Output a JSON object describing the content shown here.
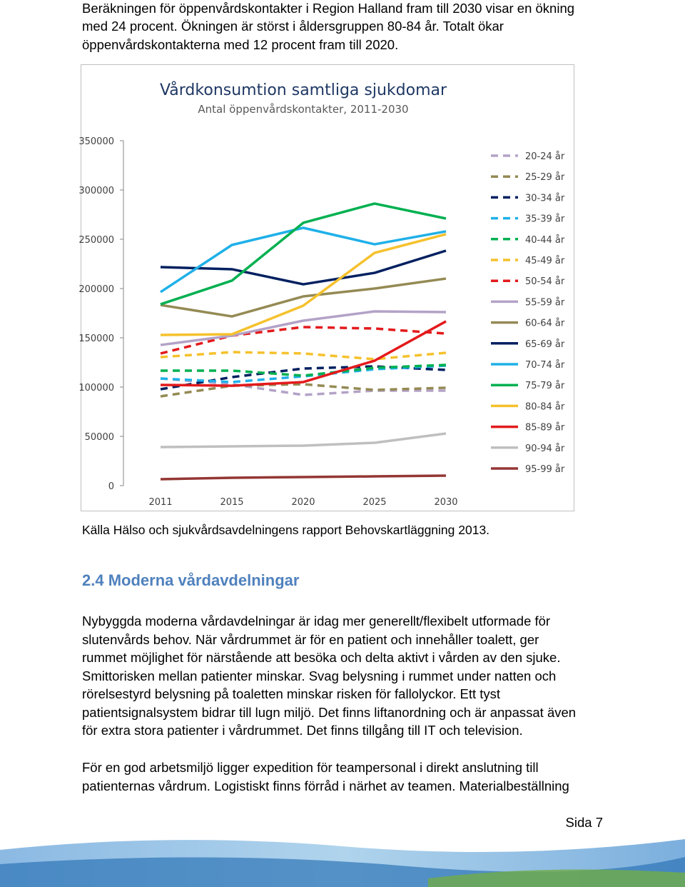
{
  "intro": [
    "Beräkningen för öppenvårdskontakter i Region Halland fram till 2030 visar en ökning",
    "med 24 procent. Ökningen är störst i åldersgruppen 80-84 år. Totalt ökar",
    "öppenvårdskontakterna med 12 procent fram till 2020."
  ],
  "chart_data": {
    "type": "line",
    "title": "Vårdkonsumtion samtliga sjukdomar",
    "subtitle": "Antal öppenvårdskontakter, 2011-2030",
    "categories": [
      "2011",
      "2015",
      "2020",
      "2025",
      "2030"
    ],
    "ylim": [
      0,
      350000
    ],
    "yticks": [
      0,
      50000,
      100000,
      150000,
      200000,
      250000,
      300000,
      350000
    ],
    "legend": "right",
    "series": [
      {
        "name": "20-24 år",
        "color": "#b3a2c7",
        "style": "dashed",
        "values": [
          108700,
          102900,
          92000,
          96400,
          96400
        ]
      },
      {
        "name": "25-29 år",
        "color": "#948a54",
        "style": "dashed",
        "values": [
          90600,
          101400,
          102900,
          97100,
          99300
        ]
      },
      {
        "name": "30-34 år",
        "color": "#002060",
        "style": "dashed",
        "values": [
          97800,
          110100,
          118800,
          121000,
          117400
        ]
      },
      {
        "name": "35-39 år",
        "color": "#1fb0e8",
        "style": "dashed",
        "values": [
          108700,
          105100,
          110900,
          118100,
          121700
        ]
      },
      {
        "name": "40-44 år",
        "color": "#00b050",
        "style": "dashed",
        "values": [
          116700,
          116700,
          111600,
          119600,
          122500
        ]
      },
      {
        "name": "45-49 år",
        "color": "#f5c12c",
        "style": "dashed",
        "values": [
          130400,
          135500,
          134100,
          128300,
          134800
        ]
      },
      {
        "name": "50-54 år",
        "color": "#e31a1c",
        "style": "dashed",
        "values": [
          134100,
          152200,
          160900,
          159400,
          154300
        ]
      },
      {
        "name": "55-59 år",
        "color": "#b3a2c7",
        "style": "solid",
        "values": [
          142700,
          152200,
          167400,
          176800,
          176100
        ]
      },
      {
        "name": "60-64 år",
        "color": "#948a54",
        "style": "solid",
        "values": [
          183300,
          171700,
          192000,
          200000,
          210100
        ]
      },
      {
        "name": "65-69 år",
        "color": "#002060",
        "style": "solid",
        "values": [
          221700,
          219600,
          204300,
          215900,
          238400
        ]
      },
      {
        "name": "70-74 år",
        "color": "#1fb0e8",
        "style": "solid",
        "values": [
          196400,
          244200,
          261600,
          244900,
          258000
        ]
      },
      {
        "name": "75-79 år",
        "color": "#00b050",
        "style": "solid",
        "values": [
          184000,
          208000,
          266700,
          286200,
          271000
        ]
      },
      {
        "name": "80-84 år",
        "color": "#f5c12c",
        "style": "solid",
        "values": [
          152900,
          153600,
          182600,
          236200,
          255100
        ]
      },
      {
        "name": "85-89 år",
        "color": "#e31a1c",
        "style": "solid",
        "values": [
          102200,
          101400,
          105100,
          126800,
          166700
        ]
      },
      {
        "name": "90-94 år",
        "color": "#bfbfbf",
        "style": "solid",
        "values": [
          39100,
          39900,
          40600,
          43500,
          52900
        ]
      },
      {
        "name": "95-99 år",
        "color": "#943634",
        "style": "solid",
        "values": [
          6500,
          8000,
          8700,
          9400,
          10100
        ]
      }
    ]
  },
  "source": "Källa Hälso och sjukvårdsavdelningens rapport Behovskartläggning 2013.",
  "section": {
    "heading": "2.4 Moderna vårdavdelningar",
    "paragraphs": [
      [
        "Nybyggda moderna vårdavdelningar är idag mer generellt/flexibelt utformade för",
        "slutenvårds behov. När vårdrummet är för en patient och innehåller toalett, ger",
        "rummet möjlighet för närstående att besöka och delta aktivt i vården av den sjuke.",
        "Smittorisken mellan patienter minskar. Svag belysning i rummet under natten och",
        "rörelsestyrd belysning på toaletten minskar risken för fallolyckor. Ett tyst",
        "patientsignalsystem bidrar till lugn miljö. Det finns liftanordning och är anpassat även",
        "för extra stora patienter i vårdrummet. Det finns tillgång till IT och television."
      ],
      [
        "För en god arbetsmiljö ligger expedition för teampersonal i direkt anslutning till",
        "patienternas vårdrum. Logistiskt finns förråd i närhet av teamen. Materialbeställning"
      ]
    ]
  },
  "footer": {
    "page": "Sida 7"
  }
}
